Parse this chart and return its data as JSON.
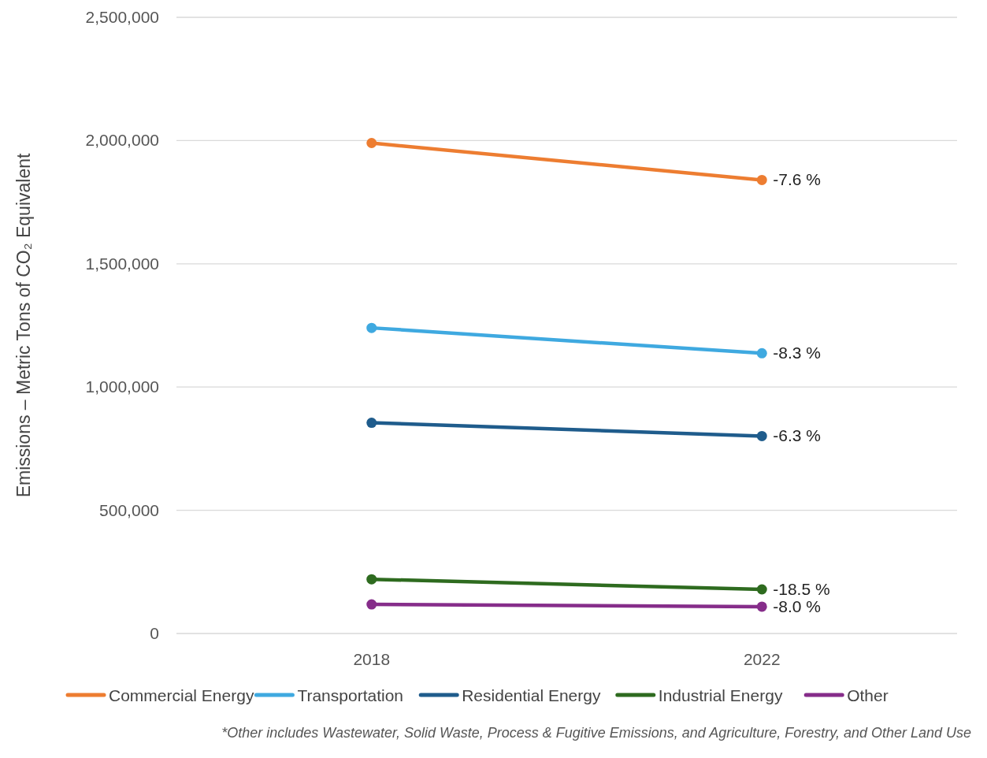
{
  "chart_data": {
    "type": "line",
    "ylabel": "Emissions – Metric Tons of CO₂ Equivalent",
    "categories": [
      "2018",
      "2022"
    ],
    "series": [
      {
        "name": "Commercial Energy",
        "color": "#ed7d31",
        "values": [
          1990000,
          1840000
        ]
      },
      {
        "name": "Transportation",
        "color": "#3fa9e0",
        "values": [
          1240000,
          1137000
        ]
      },
      {
        "name": "Residential Energy",
        "color": "#1f5c8c",
        "values": [
          855000,
          801000
        ]
      },
      {
        "name": "Industrial Energy",
        "color": "#2e6b1f",
        "values": [
          220000,
          179000
        ]
      },
      {
        "name": "Other",
        "color": "#862d8a",
        "values": [
          118000,
          109000
        ]
      }
    ],
    "ylim": [
      0,
      2500000
    ],
    "yticks": [
      {
        "value": 0,
        "label": "0"
      },
      {
        "value": 500000,
        "label": "500,000"
      },
      {
        "value": 1000000,
        "label": "1,000,000"
      },
      {
        "value": 1500000,
        "label": "1,500,000"
      },
      {
        "value": 2000000,
        "label": "2,000,000"
      },
      {
        "value": 2500000,
        "label": "2,500,000"
      }
    ],
    "grid": "y",
    "legend": "bottom",
    "marker": "circle",
    "line_style": "solid",
    "annotations": [
      {
        "text": "-7.6 %",
        "x": "2022",
        "y": 1840000
      },
      {
        "text": "-8.3 %",
        "x": "2022",
        "y": 1137000
      },
      {
        "text": "-6.3 %",
        "x": "2022",
        "y": 801000
      },
      {
        "text": "-18.5 %",
        "x": "2022",
        "y": 179000
      },
      {
        "text": "-8.0 %",
        "x": "2022",
        "y": 109000
      },
      "*Other includes Wastewater, Solid Waste, Process & Fugitive Emissions, and Agriculture, Forestry, and Other Land Use"
    ]
  }
}
